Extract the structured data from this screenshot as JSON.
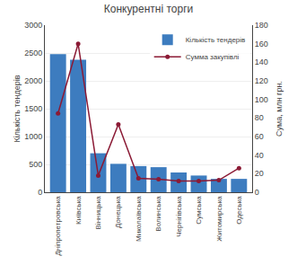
{
  "chart_data": {
    "type": "bar",
    "title": "Конкурентні торги",
    "categories": [
      "Дніпропетровська",
      "Київська",
      "Вінницька",
      "Донецька",
      "Миколаївська",
      "Волинська",
      "Чернігівська",
      "Сумська",
      "Житомирська",
      "Одеська"
    ],
    "series": [
      {
        "name": "Кількість тендерів",
        "type": "bar",
        "color": "#3d7cbf",
        "values": [
          2480,
          2380,
          700,
          510,
          470,
          450,
          355,
          300,
          240,
          240
        ]
      },
      {
        "name": "Сумма закупівлі",
        "type": "line",
        "axis": "y2",
        "color": "#8B1A35",
        "marker": "circle",
        "values": [
          85,
          160,
          18,
          73,
          15,
          14,
          12,
          12,
          13,
          26
        ]
      }
    ],
    "ylabel": "Кількість тендерів",
    "y2label": "Сума, млн грн.",
    "ylim": [
      0,
      3000
    ],
    "yticks": [
      0,
      500,
      1000,
      1500,
      2000,
      2500,
      3000
    ],
    "y2lim": [
      0,
      180
    ],
    "y2ticks": [
      0,
      20,
      40,
      60,
      80,
      100,
      120,
      140,
      160,
      180
    ],
    "grid": true,
    "legend": "upper right"
  }
}
